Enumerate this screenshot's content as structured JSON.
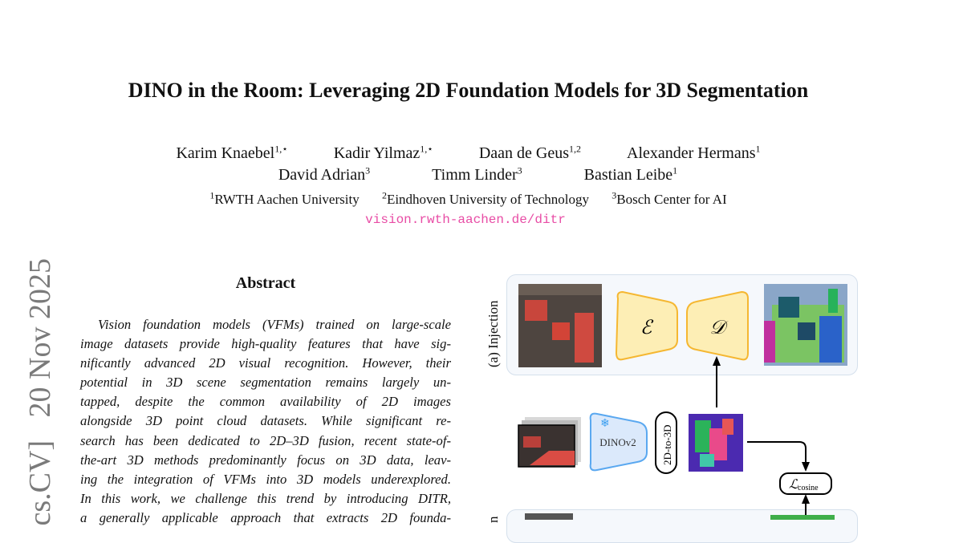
{
  "title": "DINO in the Room: Leveraging 2D Foundation Models for 3D Segmentation",
  "authors_row1": [
    {
      "name": "Karim Knaebel",
      "sup": "1,⋆"
    },
    {
      "name": "Kadir Yilmaz",
      "sup": "1,⋆"
    },
    {
      "name": "Daan de Geus",
      "sup": "1,2"
    },
    {
      "name": "Alexander Hermans",
      "sup": "1"
    }
  ],
  "authors_row2": [
    {
      "name": "David Adrian",
      "sup": "3"
    },
    {
      "name": "Timm Linder",
      "sup": "3"
    },
    {
      "name": "Bastian Leibe",
      "sup": "1"
    }
  ],
  "affiliations": [
    {
      "sup": "1",
      "name": "RWTH Aachen University"
    },
    {
      "sup": "2",
      "name": "Eindhoven University of Technology"
    },
    {
      "sup": "3",
      "name": "Bosch Center for AI"
    }
  ],
  "url": "vision.rwth-aachen.de/ditr",
  "arxiv_side": "cs.CV]   20 Nov 2025",
  "abstract_heading": "Abstract",
  "abstract_lines": [
    "Vision foundation models (VFMs) trained on large-scale",
    "image datasets provide high-quality features that have sig-",
    "nificantly advanced 2D visual recognition. However, their",
    "potential in 3D scene segmentation remains largely un-",
    "tapped, despite the common availability of 2D images",
    "alongside 3D point cloud datasets. While significant re-",
    "search has been dedicated to 2D–3D fusion, recent state-of-",
    "the-art 3D methods predominantly focus on 3D data, leav-",
    "ing the integration of VFMs into 3D models underexplored.",
    "In this work, we challenge this trend by introducing DITR,",
    "a generally applicable approach that extracts 2D founda-"
  ],
  "figure": {
    "panel_a_label": "(a) Injection",
    "encoder": "ℰ",
    "decoder": "𝒟",
    "dino": "DINOv2",
    "lift": "2D-to-3D",
    "loss": "ℒ",
    "loss_sub": "cosine",
    "panel_b_label_partial": "n",
    "colors": {
      "encoder_fill": "#fdeeb5",
      "encoder_stroke": "#f5b731",
      "dino_fill": "#dbe9fb",
      "dino_stroke": "#5aa8f0",
      "panel_fill": "#f5f8fc"
    }
  }
}
